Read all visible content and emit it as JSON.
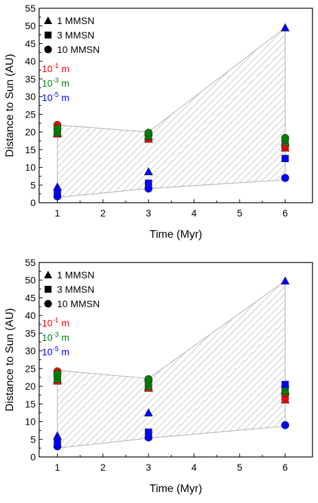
{
  "colors": {
    "size_1e-1": "#ff0000",
    "size_1e-3": "#008000",
    "size_1e-5": "#0000ff",
    "hatch": "#bbbbbb",
    "axis": "#000000"
  },
  "legend": {
    "markers": [
      {
        "shape": "triangle",
        "label": "1 MMSN"
      },
      {
        "shape": "square",
        "label": "3 MMSN"
      },
      {
        "shape": "circle",
        "label": "10 MMSN"
      }
    ],
    "sizes": [
      {
        "base": "10",
        "exp": "-1",
        "unit": " m",
        "color_key": "size_1e-1"
      },
      {
        "base": "10",
        "exp": "-3",
        "unit": " m",
        "color_key": "size_1e-3"
      },
      {
        "base": "10",
        "exp": "-5",
        "unit": " m",
        "color_key": "size_1e-5"
      }
    ]
  },
  "chart_data": [
    {
      "type": "scatter",
      "xlabel": "Time (Myr)",
      "ylabel": "Distance to Sun (AU)",
      "xlim": [
        0.6,
        6.6
      ],
      "ylim": [
        0,
        55
      ],
      "xticks": [
        1,
        2,
        3,
        4,
        5,
        6
      ],
      "yticks": [
        0,
        5,
        10,
        15,
        20,
        25,
        30,
        35,
        40,
        45,
        50,
        55
      ],
      "band": {
        "upper": [
          [
            1,
            22
          ],
          [
            3,
            20
          ],
          [
            6,
            49.5
          ]
        ],
        "lower": [
          [
            1,
            1.5
          ],
          [
            3,
            4
          ],
          [
            6,
            6.5
          ]
        ],
        "pattern": "diagonal hatch"
      },
      "points": [
        {
          "x": 1,
          "y": 19.5,
          "marker": "triangle",
          "color": "size_1e-1"
        },
        {
          "x": 1,
          "y": 20.5,
          "marker": "square",
          "color": "size_1e-1"
        },
        {
          "x": 1,
          "y": 22,
          "marker": "circle",
          "color": "size_1e-1"
        },
        {
          "x": 1,
          "y": 19.8,
          "marker": "triangle",
          "color": "size_1e-3"
        },
        {
          "x": 1,
          "y": 20.2,
          "marker": "square",
          "color": "size_1e-3"
        },
        {
          "x": 1,
          "y": 21,
          "marker": "circle",
          "color": "size_1e-3"
        },
        {
          "x": 1,
          "y": 4.5,
          "marker": "triangle",
          "color": "size_1e-5"
        },
        {
          "x": 1,
          "y": 3,
          "marker": "square",
          "color": "size_1e-5"
        },
        {
          "x": 1,
          "y": 1.8,
          "marker": "circle",
          "color": "size_1e-5"
        },
        {
          "x": 3,
          "y": 18,
          "marker": "triangle",
          "color": "size_1e-1"
        },
        {
          "x": 3,
          "y": 18.5,
          "marker": "square",
          "color": "size_1e-1"
        },
        {
          "x": 3,
          "y": 19.2,
          "marker": "circle",
          "color": "size_1e-1"
        },
        {
          "x": 3,
          "y": 18.8,
          "marker": "triangle",
          "color": "size_1e-3"
        },
        {
          "x": 3,
          "y": 19,
          "marker": "square",
          "color": "size_1e-3"
        },
        {
          "x": 3,
          "y": 19.8,
          "marker": "circle",
          "color": "size_1e-3"
        },
        {
          "x": 3,
          "y": 8.8,
          "marker": "triangle",
          "color": "size_1e-5"
        },
        {
          "x": 3,
          "y": 5.5,
          "marker": "square",
          "color": "size_1e-5"
        },
        {
          "x": 3,
          "y": 4,
          "marker": "circle",
          "color": "size_1e-5"
        },
        {
          "x": 6,
          "y": 15.5,
          "marker": "triangle",
          "color": "size_1e-1"
        },
        {
          "x": 6,
          "y": 15.8,
          "marker": "square",
          "color": "size_1e-1"
        },
        {
          "x": 6,
          "y": 16.2,
          "marker": "circle",
          "color": "size_1e-1"
        },
        {
          "x": 6,
          "y": 17.2,
          "marker": "triangle",
          "color": "size_1e-3"
        },
        {
          "x": 6,
          "y": 17.8,
          "marker": "square",
          "color": "size_1e-3"
        },
        {
          "x": 6,
          "y": 18.3,
          "marker": "circle",
          "color": "size_1e-3"
        },
        {
          "x": 6,
          "y": 49.5,
          "marker": "triangle",
          "color": "size_1e-5"
        },
        {
          "x": 6,
          "y": 12.5,
          "marker": "square",
          "color": "size_1e-5"
        },
        {
          "x": 6,
          "y": 7,
          "marker": "circle",
          "color": "size_1e-5"
        }
      ]
    },
    {
      "type": "scatter",
      "xlabel": "Time (Myr)",
      "ylabel": "Distance to Sun (AU)",
      "xlim": [
        0.6,
        6.6
      ],
      "ylim": [
        0,
        55
      ],
      "xticks": [
        1,
        2,
        3,
        4,
        5,
        6
      ],
      "yticks": [
        0,
        5,
        10,
        15,
        20,
        25,
        30,
        35,
        40,
        45,
        50,
        55
      ],
      "band": {
        "upper": [
          [
            1,
            24.5
          ],
          [
            3,
            22.2
          ],
          [
            6,
            49.8
          ]
        ],
        "lower": [
          [
            1,
            2.5
          ],
          [
            3,
            5.3
          ],
          [
            6,
            8.7
          ]
        ],
        "pattern": "diagonal hatch"
      },
      "points": [
        {
          "x": 1,
          "y": 21.5,
          "marker": "triangle",
          "color": "size_1e-1"
        },
        {
          "x": 1,
          "y": 22.5,
          "marker": "square",
          "color": "size_1e-1"
        },
        {
          "x": 1,
          "y": 24.2,
          "marker": "circle",
          "color": "size_1e-1"
        },
        {
          "x": 1,
          "y": 22,
          "marker": "triangle",
          "color": "size_1e-3"
        },
        {
          "x": 1,
          "y": 22.8,
          "marker": "square",
          "color": "size_1e-3"
        },
        {
          "x": 1,
          "y": 23.5,
          "marker": "circle",
          "color": "size_1e-3"
        },
        {
          "x": 1,
          "y": 6,
          "marker": "triangle",
          "color": "size_1e-5"
        },
        {
          "x": 1,
          "y": 4.5,
          "marker": "square",
          "color": "size_1e-5"
        },
        {
          "x": 1,
          "y": 3,
          "marker": "circle",
          "color": "size_1e-5"
        },
        {
          "x": 3,
          "y": 19.5,
          "marker": "triangle",
          "color": "size_1e-1"
        },
        {
          "x": 3,
          "y": 20.5,
          "marker": "square",
          "color": "size_1e-1"
        },
        {
          "x": 3,
          "y": 21.5,
          "marker": "circle",
          "color": "size_1e-1"
        },
        {
          "x": 3,
          "y": 20,
          "marker": "triangle",
          "color": "size_1e-3"
        },
        {
          "x": 3,
          "y": 21,
          "marker": "square",
          "color": "size_1e-3"
        },
        {
          "x": 3,
          "y": 22,
          "marker": "circle",
          "color": "size_1e-3"
        },
        {
          "x": 3,
          "y": 12.5,
          "marker": "triangle",
          "color": "size_1e-5"
        },
        {
          "x": 3,
          "y": 7,
          "marker": "square",
          "color": "size_1e-5"
        },
        {
          "x": 3,
          "y": 5.5,
          "marker": "circle",
          "color": "size_1e-5"
        },
        {
          "x": 6,
          "y": 16.2,
          "marker": "triangle",
          "color": "size_1e-1"
        },
        {
          "x": 6,
          "y": 17,
          "marker": "square",
          "color": "size_1e-1"
        },
        {
          "x": 6,
          "y": 18,
          "marker": "circle",
          "color": "size_1e-1"
        },
        {
          "x": 6,
          "y": 18.5,
          "marker": "triangle",
          "color": "size_1e-3"
        },
        {
          "x": 6,
          "y": 19,
          "marker": "square",
          "color": "size_1e-3"
        },
        {
          "x": 6,
          "y": 19.8,
          "marker": "circle",
          "color": "size_1e-3"
        },
        {
          "x": 6,
          "y": 49.8,
          "marker": "triangle",
          "color": "size_1e-5"
        },
        {
          "x": 6,
          "y": 20.5,
          "marker": "square",
          "color": "size_1e-5"
        },
        {
          "x": 6,
          "y": 9,
          "marker": "circle",
          "color": "size_1e-5"
        }
      ]
    }
  ]
}
